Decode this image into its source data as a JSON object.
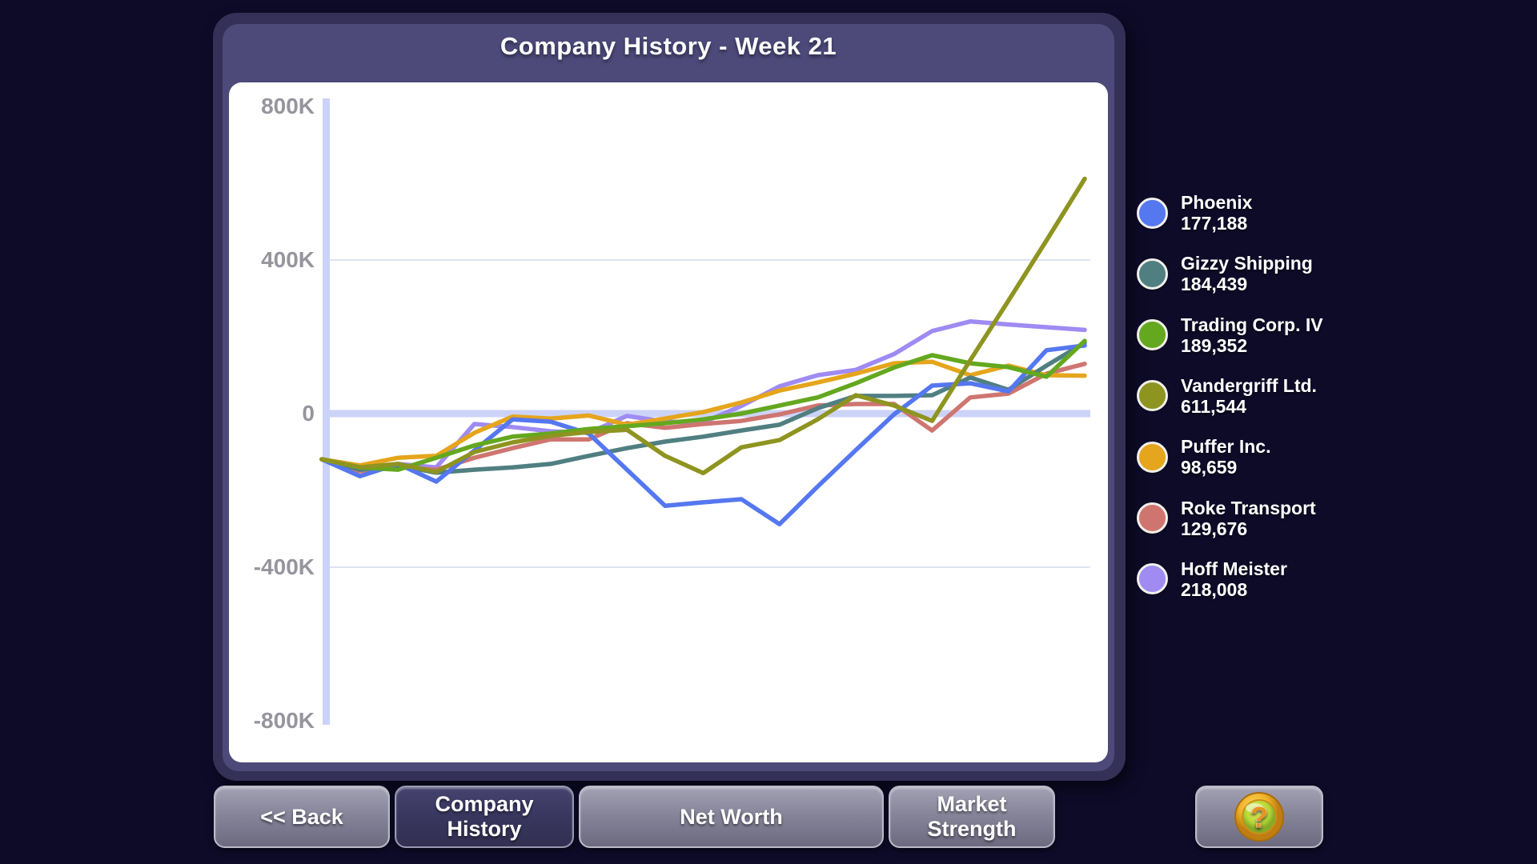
{
  "window": {
    "title": "Company History - Week 21"
  },
  "nav": {
    "back_label": "<< Back",
    "company_history_label": "Company History",
    "net_worth_label": "Net Worth",
    "market_strength_label": "Market Strength",
    "help_icon": "question-coin-icon"
  },
  "colors": {
    "background": "#0d0b28",
    "panel_outer": "#343057",
    "panel_inner": "#4d4a7a",
    "card": "#ffffff",
    "axis": "#ccd3f8",
    "gridline": "#dfe3f2",
    "tick_text": "#96949d",
    "coin_gold": "#f0b42a",
    "coin_green": "#b8d838"
  },
  "chart_data": {
    "type": "line",
    "title": "Company History - Week 21",
    "x_unit": "week",
    "x": [
      1,
      2,
      3,
      4,
      5,
      6,
      7,
      8,
      9,
      10,
      11,
      12,
      13,
      14,
      15,
      16,
      17,
      18,
      19,
      20,
      21
    ],
    "x_axis_labels_visible": false,
    "ylim": [
      -800000,
      800000
    ],
    "y_ticks": [
      {
        "label": "800K",
        "value": 800000
      },
      {
        "label": "400K",
        "value": 400000
      },
      {
        "label": "0",
        "value": 0
      },
      {
        "label": "-400K",
        "value": -400000
      },
      {
        "label": "-800K",
        "value": -800000
      }
    ],
    "grid": "thin lines at +400K/-400K, thick emphasized zero line and y-axis",
    "legend_position": "right",
    "series": [
      {
        "name": "Phoenix",
        "final_value": 177188,
        "final_label": "177,188",
        "color": "#5577f0",
        "values": [
          -119000,
          -163000,
          -131000,
          -177000,
          -96000,
          -15000,
          -21000,
          -52000,
          -146000,
          -240000,
          -231000,
          -223000,
          -288000,
          -190000,
          -95000,
          -2000,
          73000,
          79000,
          58000,
          165000,
          177188
        ]
      },
      {
        "name": "Gizzy Shipping",
        "final_value": 184439,
        "final_label": "184,439",
        "color": "#507f82",
        "values": [
          -119000,
          -146000,
          -135000,
          -154000,
          -146000,
          -140000,
          -131000,
          -110000,
          -90000,
          -73000,
          -60000,
          -44000,
          -29000,
          14000,
          46000,
          46000,
          48000,
          94000,
          62000,
          125000,
          184439
        ]
      },
      {
        "name": "Trading Corp. IV",
        "final_value": 189352,
        "final_label": "189,352",
        "color": "#64a81f",
        "values": [
          -119000,
          -140000,
          -146000,
          -115000,
          -83000,
          -60000,
          -52000,
          -40000,
          -33000,
          -25000,
          -15000,
          0,
          21000,
          42000,
          79000,
          120000,
          152000,
          131000,
          121000,
          96000,
          189352
        ]
      },
      {
        "name": "Vandergriff Ltd.",
        "final_value": 611544,
        "final_label": "611,544",
        "color": "#8e9420",
        "values": [
          -119000,
          -140000,
          -131000,
          -152000,
          -100000,
          -75000,
          -58000,
          -48000,
          -42000,
          -110000,
          -155000,
          -88000,
          -69000,
          -15000,
          48000,
          21000,
          -19000,
          139000,
          294000,
          451000,
          611544
        ]
      },
      {
        "name": "Puffer Inc.",
        "final_value": 98659,
        "final_label": "98,659",
        "color": "#e5a51c",
        "values": [
          -119000,
          -135000,
          -115000,
          -110000,
          -50000,
          -8000,
          -13000,
          -5000,
          -29000,
          -13000,
          4000,
          29000,
          60000,
          81000,
          104000,
          131000,
          135000,
          100000,
          125000,
          100000,
          98659
        ]
      },
      {
        "name": "Roke Transport",
        "final_value": 129676,
        "final_label": "129,676",
        "color": "#cf7570",
        "values": [
          -119000,
          -150000,
          -140000,
          -146000,
          -115000,
          -90000,
          -67000,
          -67000,
          -25000,
          -37000,
          -27000,
          -19000,
          -2000,
          21000,
          25000,
          25000,
          -44000,
          42000,
          52000,
          104000,
          129676
        ]
      },
      {
        "name": "Hoff Meister",
        "final_value": 218008,
        "final_label": "218,008",
        "color": "#9f8bf2",
        "values": [
          -119000,
          -146000,
          -131000,
          -140000,
          -27000,
          -35000,
          -46000,
          -50000,
          -6000,
          -21000,
          -23000,
          20000,
          71000,
          100000,
          114000,
          155000,
          215000,
          240000,
          232000,
          225000,
          218008
        ]
      }
    ]
  }
}
